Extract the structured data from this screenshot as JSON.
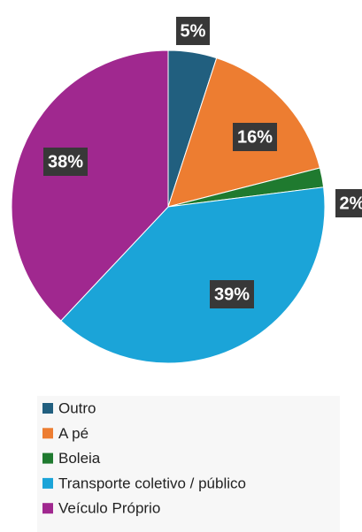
{
  "chart_data": {
    "type": "pie",
    "categories": [
      "Outro",
      "A pé",
      "Boleia",
      "Transporte coletivo / público",
      "Veículo Próprio"
    ],
    "values": [
      5,
      16,
      2,
      39,
      38
    ],
    "value_labels": [
      "5%",
      "16%",
      "2%",
      "39%",
      "38%"
    ],
    "colors": [
      "#215f7f",
      "#ed7d31",
      "#1f7a2f",
      "#1ba4d8",
      "#a0288f"
    ],
    "legend": "bottom"
  }
}
